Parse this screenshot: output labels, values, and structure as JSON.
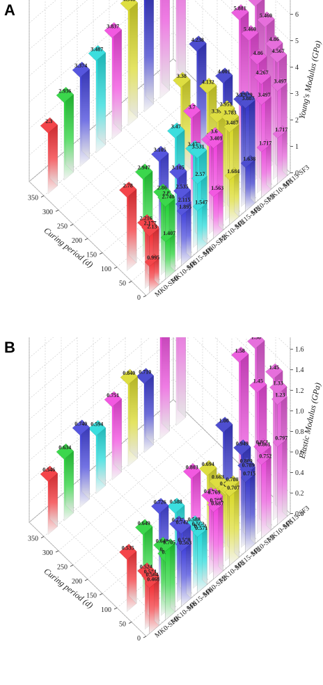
{
  "series_names": [
    "MK0-SF0",
    "MK10-SF0",
    "MK15-SF0",
    "MK0-SF2",
    "MK10-SF2",
    "MK15-SF2",
    "MK0-SF3",
    "MK10-SF3",
    "MK15-SF3"
  ],
  "series_colors": [
    "#f2242a",
    "#18d02c",
    "#3838d8",
    "#18d8d8",
    "#f03cdc",
    "#d8d820",
    "#2f2fc8",
    "#e844d8",
    "#e256d6"
  ],
  "curing_ticks": [
    "0",
    "50",
    "100",
    "150",
    "200",
    "250",
    "300",
    "350"
  ],
  "chart_data": [
    {
      "panel": "A",
      "type": "bar3d",
      "zlabel": "Young's Modulus (GPa)",
      "ylabel": "Curing period (d)",
      "zlim": [
        0,
        7
      ],
      "z_ticks": [
        "0",
        "1",
        "2",
        "3",
        "4",
        "5",
        "6",
        "7"
      ],
      "days": [
        3,
        7,
        14,
        28,
        56,
        90,
        180,
        360
      ],
      "grid": true,
      "labels": [
        [
          "0.995",
          "1.407",
          "1.895",
          "1.547",
          "1.563",
          "1.684",
          "1.638",
          "1.717",
          "1.717"
        ],
        [
          "2.13",
          "2.740",
          "2.115",
          "2.57",
          "3.401",
          "3.487",
          "3.887",
          "3.497",
          "3.497"
        ],
        [
          "2.177",
          "2.8",
          "2.535",
          "3.531",
          "3.6",
          "3.783",
          "3.939",
          "4.267",
          "4.567"
        ],
        [
          "2.216",
          "2.86",
          "3.105",
          "3.472",
          "3.3",
          "3.951",
          "3.795",
          "4.86",
          "4.86"
        ],
        [
          "",
          "",
          "",
          "",
          "",
          "3.394",
          "",
          "5.460",
          "5.460"
        ],
        [
          "2.78",
          "2.947",
          "3.105",
          "3.47",
          "3.7",
          "4.132",
          "4.001",
          "5.881",
          "5.881"
        ],
        [
          "",
          "",
          "",
          "",
          "",
          "3.38",
          "4.238",
          "",
          ""
        ],
        [
          "2.3",
          "2.936",
          "3.374",
          "3.487",
          "3.837",
          "4.348",
          "4.238",
          "6.390",
          "6.390"
        ]
      ],
      "values": [
        [
          0.995,
          1.407,
          1.895,
          1.547,
          1.563,
          1.684,
          1.638,
          1.717,
          1.717
        ],
        [
          2.13,
          2.74,
          2.115,
          2.57,
          3.401,
          3.487,
          3.887,
          3.497,
          3.497
        ],
        [
          2.177,
          2.8,
          2.535,
          3.531,
          3.6,
          3.783,
          3.939,
          4.267,
          4.567
        ],
        [
          2.216,
          2.86,
          3.105,
          3.472,
          3.3,
          3.951,
          3.795,
          4.86,
          4.86
        ],
        [
          null,
          null,
          null,
          null,
          null,
          3.394,
          null,
          5.46,
          5.46
        ],
        [
          2.78,
          2.947,
          3.105,
          3.47,
          3.7,
          4.132,
          4.001,
          5.881,
          5.881
        ],
        [
          null,
          null,
          null,
          null,
          null,
          3.38,
          4.238,
          null,
          null
        ],
        [
          2.3,
          2.936,
          3.374,
          3.487,
          3.837,
          4.348,
          4.238,
          6.39,
          6.39
        ]
      ]
    },
    {
      "panel": "B",
      "type": "bar3d",
      "zlabel": "Elastic Modulus (GPa)",
      "ylabel": "Curing period (d)",
      "zlim": [
        0,
        1.9
      ],
      "z_ticks": [
        "0.0",
        "0.2",
        "0.4",
        "0.6",
        "0.8",
        "1.0",
        "1.2",
        "1.4",
        "1.6",
        "1.8"
      ],
      "days": [
        3,
        7,
        14,
        28,
        56,
        90,
        180,
        360
      ],
      "grid": true,
      "labels": [
        [
          "0.468",
          "0.705",
          "0.563",
          "0.571",
          "0.687",
          "0.707",
          "0.715",
          "0.752",
          "0.797"
        ],
        [
          "0.504",
          "0.595",
          "0.580",
          "0.582",
          "0.705",
          "0.780",
          "0.789",
          "0.861",
          "1.23"
        ],
        [
          "0.514",
          "0.604",
          "0.742",
          "0.582",
          "0.769",
          "0.704",
          "0.809",
          "0.861",
          "1.33"
        ],
        [
          "0.524",
          "0.649",
          "0.726",
          "0.588",
          "0.739",
          "0.678",
          "0.949",
          "1.45",
          "1.45"
        ],
        [
          "",
          "",
          "",
          "",
          "",
          "0.663",
          "",
          "",
          ""
        ],
        [
          "0.535",
          "0.649",
          "0.726",
          "0.588",
          "0.803",
          "0.694",
          "1.00",
          "1.58",
          "1.58"
        ],
        [
          "",
          "",
          "",
          "",
          "",
          "",
          "",
          "",
          ""
        ],
        [
          "0.546",
          "0.634",
          "0.740",
          "0.594",
          "0.751",
          "0.840",
          "0.710",
          "1.06",
          "1.72"
        ]
      ],
      "values": [
        [
          0.468,
          0.705,
          0.563,
          0.571,
          0.687,
          0.707,
          0.715,
          0.752,
          0.797
        ],
        [
          0.504,
          0.595,
          0.58,
          0.582,
          0.705,
          0.78,
          0.789,
          0.861,
          1.23
        ],
        [
          0.514,
          0.604,
          0.742,
          0.582,
          0.769,
          0.704,
          0.809,
          0.861,
          1.33
        ],
        [
          0.524,
          0.649,
          0.726,
          0.588,
          0.739,
          0.678,
          0.949,
          1.45,
          1.45
        ],
        [
          null,
          null,
          null,
          null,
          null,
          0.663,
          null,
          null,
          null
        ],
        [
          0.535,
          0.649,
          0.726,
          0.588,
          0.803,
          0.694,
          1.0,
          1.58,
          1.58
        ],
        [
          null,
          null,
          null,
          null,
          null,
          null,
          null,
          null,
          null
        ],
        [
          0.546,
          0.634,
          0.74,
          0.594,
          0.751,
          0.84,
          0.71,
          1.06,
          1.72
        ]
      ]
    }
  ],
  "panels": {
    "A": "A",
    "B": "B"
  }
}
